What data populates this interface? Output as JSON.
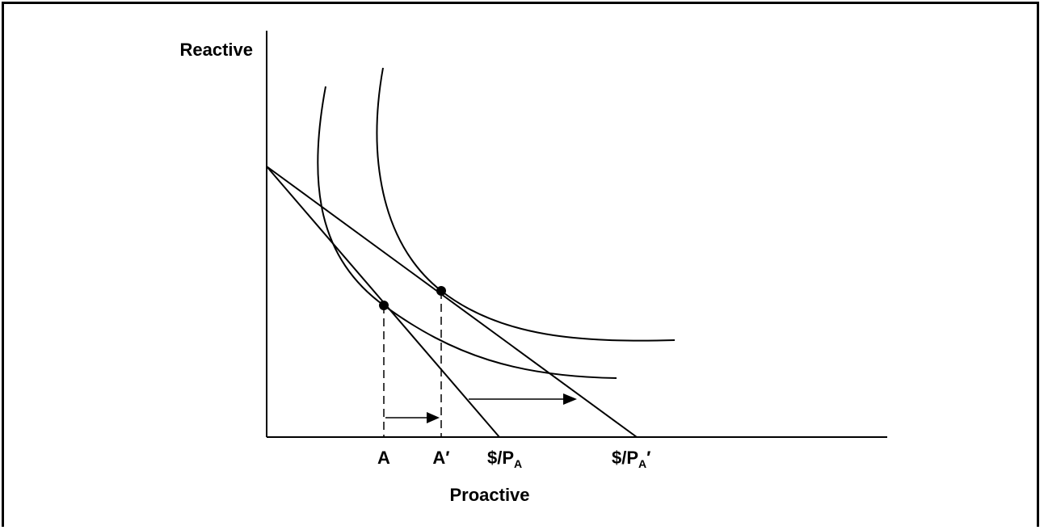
{
  "axes": {
    "y_label": "Reactive",
    "x_label": "Proactive"
  },
  "tick_labels": {
    "a": "A",
    "a_prime": "A′",
    "budget_base": "$/P",
    "budget_sub": "A",
    "budget_prime_base": "$/P",
    "budget_prime_sub": "A",
    "budget_prime_mark": "′"
  },
  "colors": {
    "ink": "#000000",
    "background": "#ffffff"
  }
}
